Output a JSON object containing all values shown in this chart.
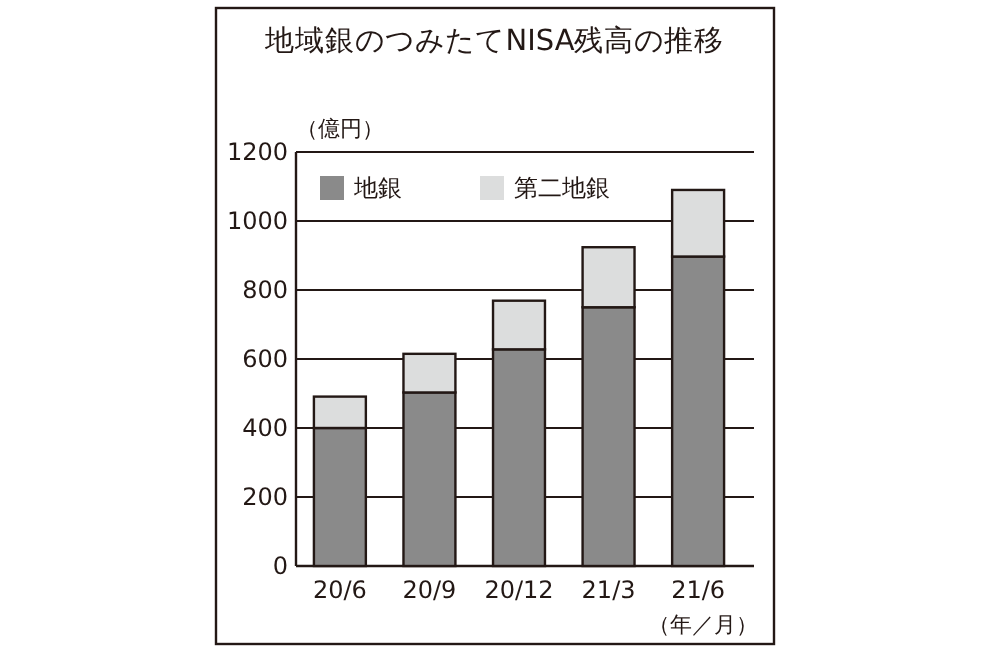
{
  "chart_data": {
    "type": "bar",
    "title": "地域銀のつみたてNISA残高の推移",
    "ylabel": "（億円）",
    "xlabel": "（年／月）",
    "categories": [
      "20/6",
      "20/9",
      "20/12",
      "21/3",
      "21/6"
    ],
    "stacked": true,
    "series": [
      {
        "name": "地銀",
        "color": "#8a8a8a",
        "values": [
          400,
          503,
          628,
          750,
          897
        ]
      },
      {
        "name": "第二地銀",
        "color": "#dcdddd",
        "values": [
          91,
          112,
          141,
          174,
          193
        ]
      }
    ],
    "ylim": [
      0,
      1200
    ],
    "yticks": [
      0,
      200,
      400,
      600,
      800,
      1000,
      1200
    ],
    "grid": "y",
    "legend": "top left"
  }
}
